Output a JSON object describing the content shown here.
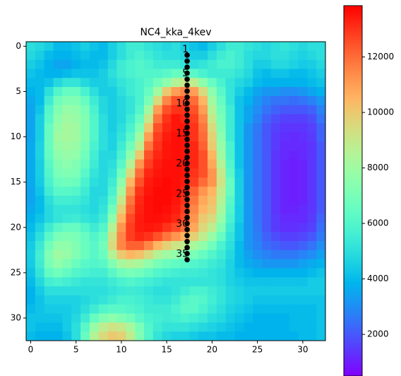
{
  "chart_data": {
    "type": "heatmap",
    "title": "NC4_kka_4kev",
    "colormap": "rainbow",
    "xlim": [
      -0.5,
      32.5
    ],
    "ylim": [
      32.5,
      -0.5
    ],
    "xticks": [
      0,
      5,
      10,
      15,
      20,
      25,
      30
    ],
    "yticks": [
      0,
      5,
      10,
      15,
      20,
      25,
      30
    ],
    "clim": [
      500,
      13850
    ],
    "colorbar_ticks": [
      2000,
      4000,
      6000,
      8000,
      10000,
      12000
    ],
    "z": [
      [
        5000,
        4800,
        4500,
        4000,
        4000,
        4200,
        4500,
        4200,
        4000,
        4500,
        5000,
        5500,
        5500,
        5200,
        5000,
        4800,
        5000,
        4500,
        4200,
        4000,
        4500,
        5000,
        5500,
        5500,
        5200,
        5000,
        4800,
        5000,
        5200,
        5000,
        4800,
        5000,
        5000
      ],
      [
        4800,
        4500,
        4000,
        3800,
        3800,
        4000,
        4200,
        4000,
        4000,
        4500,
        5000,
        5500,
        5800,
        5500,
        5200,
        5000,
        5000,
        4800,
        4500,
        4500,
        5000,
        5500,
        5800,
        5500,
        5000,
        4800,
        4800,
        5000,
        5000,
        4800,
        4600,
        4800,
        5000
      ],
      [
        4500,
        4200,
        3800,
        3500,
        3500,
        3800,
        4000,
        4000,
        4200,
        4800,
        5500,
        5800,
        6000,
        5800,
        5500,
        5500,
        5500,
        5200,
        5000,
        5200,
        5500,
        5800,
        5800,
        5500,
        5000,
        4500,
        4500,
        4800,
        4800,
        4600,
        4400,
        4500,
        4800
      ],
      [
        4200,
        4000,
        3800,
        3800,
        4000,
        4200,
        4200,
        4200,
        4500,
        5000,
        5500,
        5800,
        6000,
        6000,
        6000,
        6200,
        6500,
        6500,
        6200,
        5800,
        5500,
        5500,
        5500,
        5200,
        4800,
        4200,
        4000,
        4200,
        4200,
        4000,
        4000,
        4200,
        4500
      ],
      [
        4000,
        4000,
        4200,
        4800,
        5200,
        5200,
        4800,
        4500,
        4500,
        4800,
        5200,
        5500,
        5800,
        6200,
        6800,
        7500,
        8500,
        9000,
        8800,
        7500,
        6500,
        5800,
        5200,
        4800,
        4500,
        4000,
        3800,
        3800,
        3800,
        3800,
        3800,
        4000,
        4200
      ],
      [
        3800,
        4000,
        5000,
        6000,
        6500,
        6500,
        5800,
        5000,
        4500,
        4500,
        5000,
        5500,
        5800,
        6500,
        8000,
        10000,
        11000,
        11500,
        11000,
        9500,
        7500,
        6200,
        5200,
        4500,
        4000,
        3500,
        3200,
        3200,
        3000,
        3000,
        3200,
        3500,
        3800
      ],
      [
        3600,
        4000,
        5500,
        6800,
        7200,
        7200,
        6500,
        5500,
        4800,
        4500,
        4800,
        5200,
        5800,
        7000,
        9500,
        11500,
        12500,
        12500,
        12000,
        10500,
        8000,
        6500,
        5200,
        4200,
        3800,
        3200,
        2800,
        2500,
        2500,
        2400,
        2500,
        2800,
        3200
      ],
      [
        3500,
        4200,
        6000,
        7200,
        7800,
        7600,
        7000,
        5800,
        4800,
        4500,
        4800,
        5200,
        6000,
        8000,
        11000,
        12500,
        13000,
        13000,
        12500,
        11000,
        8500,
        6800,
        5500,
        4200,
        3500,
        3000,
        2500,
        2200,
        2000,
        2000,
        2000,
        2200,
        2800
      ],
      [
        3500,
        4500,
        6200,
        7500,
        8000,
        7800,
        7200,
        6000,
        5000,
        4500,
        4800,
        5500,
        6500,
        9000,
        11800,
        13000,
        13500,
        13200,
        12800,
        11500,
        9000,
        7000,
        5500,
        4200,
        3500,
        2800,
        2200,
        1800,
        1600,
        1600,
        1600,
        1800,
        2500
      ],
      [
        3500,
        4500,
        6500,
        7800,
        8200,
        8000,
        7200,
        6000,
        5000,
        4500,
        5000,
        5800,
        7200,
        10000,
        12500,
        13200,
        13500,
        13500,
        13000,
        11800,
        9500,
        7200,
        5500,
        4200,
        3200,
        2600,
        2000,
        1600,
        1400,
        1400,
        1400,
        1600,
        2200
      ],
      [
        3500,
        4500,
        6500,
        8000,
        8200,
        8000,
        7200,
        6000,
        5000,
        4600,
        5200,
        6200,
        8000,
        11000,
        12800,
        13400,
        13600,
        13500,
        13000,
        12000,
        9800,
        7500,
        5500,
        4200,
        3200,
        2500,
        2000,
        1500,
        1300,
        1200,
        1300,
        1500,
        2200
      ],
      [
        3600,
        4600,
        6500,
        7800,
        8000,
        7800,
        7000,
        5800,
        5000,
        4600,
        5500,
        6800,
        8800,
        11800,
        13000,
        13500,
        13600,
        13500,
        13200,
        12200,
        10000,
        7800,
        5800,
        4200,
        3200,
        2500,
        2000,
        1500,
        1200,
        1200,
        1200,
        1400,
        2000
      ],
      [
        3600,
        4600,
        6400,
        7500,
        7800,
        7600,
        6800,
        5600,
        4800,
        4800,
        5800,
        7500,
        10000,
        12500,
        13200,
        13500,
        13600,
        13500,
        13200,
        12500,
        10500,
        8000,
        5800,
        4200,
        3200,
        2500,
        2000,
        1400,
        1200,
        1100,
        1200,
        1400,
        2000
      ],
      [
        3600,
        4500,
        6200,
        7200,
        7500,
        7200,
        6500,
        5500,
        4800,
        5000,
        6200,
        8500,
        11200,
        12800,
        13400,
        13600,
        13600,
        13500,
        13200,
        12500,
        10800,
        8500,
        6000,
        4200,
        3200,
        2500,
        2000,
        1400,
        1100,
        1000,
        1100,
        1400,
        2000
      ],
      [
        3600,
        4500,
        6000,
        7000,
        7200,
        7000,
        6200,
        5200,
        4800,
        5200,
        6800,
        9500,
        12000,
        13200,
        13500,
        13600,
        13600,
        13500,
        13000,
        12500,
        11200,
        9000,
        6200,
        4400,
        3200,
        2500,
        2000,
        1400,
        1100,
        1000,
        1100,
        1400,
        2000
      ],
      [
        3600,
        4400,
        5800,
        6600,
        6800,
        6600,
        5800,
        5000,
        4800,
        5500,
        7500,
        10500,
        12500,
        13400,
        13600,
        13700,
        13600,
        13400,
        12800,
        12000,
        11200,
        9200,
        6500,
        4500,
        3200,
        2500,
        2000,
        1400,
        1100,
        1000,
        1100,
        1400,
        2000
      ],
      [
        3500,
        4200,
        5500,
        6200,
        6200,
        6000,
        5500,
        4800,
        4800,
        5800,
        8200,
        11200,
        13000,
        13500,
        13700,
        13700,
        13600,
        13200,
        12200,
        11200,
        10500,
        8800,
        6500,
        4500,
        3200,
        2500,
        2000,
        1400,
        1100,
        1000,
        1100,
        1400,
        2000
      ],
      [
        3500,
        4000,
        5000,
        5600,
        5600,
        5500,
        5200,
        4800,
        5000,
        6200,
        9000,
        11800,
        13200,
        13600,
        13700,
        13700,
        13500,
        13000,
        11800,
        10800,
        10200,
        8500,
        6200,
        4500,
        3200,
        2500,
        2000,
        1400,
        1100,
        1000,
        1100,
        1400,
        2000
      ],
      [
        3600,
        4000,
        4800,
        5200,
        5200,
        5200,
        5000,
        4800,
        5200,
        6800,
        9800,
        12200,
        13300,
        13600,
        13700,
        13600,
        13400,
        12800,
        11500,
        10500,
        10000,
        8200,
        6000,
        4400,
        3200,
        2500,
        2000,
        1400,
        1100,
        1100,
        1200,
        1400,
        2000
      ],
      [
        3800,
        4200,
        4800,
        5200,
        5400,
        5500,
        5200,
        5000,
        5500,
        7500,
        10500,
        12600,
        13400,
        13600,
        13600,
        13500,
        13200,
        12600,
        11200,
        10000,
        9500,
        7800,
        5800,
        4400,
        3200,
        2500,
        2000,
        1500,
        1200,
        1200,
        1200,
        1500,
        2200
      ],
      [
        4000,
        4600,
        5500,
        6200,
        6500,
        6500,
        6000,
        5500,
        6000,
        8500,
        11200,
        12800,
        13400,
        13500,
        13400,
        13000,
        12600,
        12000,
        10800,
        9600,
        8800,
        7200,
        5500,
        4200,
        3200,
        2600,
        2000,
        1500,
        1300,
        1300,
        1400,
        1600,
        2400
      ],
      [
        4200,
        5000,
        6200,
        7000,
        7200,
        7000,
        6500,
        6000,
        6500,
        9200,
        11500,
        12800,
        13200,
        13000,
        12500,
        11800,
        11200,
        10600,
        9800,
        8800,
        7800,
        6500,
        5200,
        4200,
        3200,
        2700,
        2200,
        1800,
        1600,
        1600,
        1700,
        2000,
        2600
      ],
      [
        4400,
        5400,
        6800,
        7600,
        7600,
        7200,
        6600,
        6200,
        6800,
        9500,
        11500,
        12200,
        12200,
        11500,
        10500,
        9800,
        9200,
        8800,
        8200,
        7600,
        6800,
        5800,
        5000,
        4000,
        3200,
        2800,
        2400,
        2200,
        2000,
        2000,
        2200,
        2500,
        3000
      ],
      [
        4500,
        5600,
        7200,
        8000,
        7800,
        7200,
        6600,
        6200,
        6600,
        8500,
        10000,
        10500,
        10200,
        9500,
        8500,
        8000,
        7600,
        7200,
        7000,
        6500,
        6000,
        5500,
        4800,
        4000,
        3400,
        3000,
        2800,
        2600,
        2600,
        2600,
        2800,
        3000,
        3400
      ],
      [
        4400,
        5500,
        7000,
        7600,
        7200,
        6600,
        6200,
        6000,
        6200,
        7200,
        8200,
        8500,
        8200,
        7600,
        7000,
        6600,
        6400,
        6200,
        6000,
        5800,
        5500,
        5200,
        4600,
        4000,
        3600,
        3400,
        3200,
        3200,
        3200,
        3200,
        3400,
        3600,
        3800
      ],
      [
        4200,
        5200,
        6400,
        6800,
        6400,
        6000,
        5800,
        5600,
        5600,
        6200,
        6800,
        7000,
        6800,
        6400,
        6000,
        5800,
        5600,
        5500,
        5500,
        5400,
        5200,
        5000,
        4600,
        4200,
        4000,
        3800,
        3800,
        3800,
        3800,
        3800,
        3800,
        4000,
        4200
      ],
      [
        4000,
        4800,
        5600,
        5800,
        5600,
        5400,
        5200,
        5200,
        5200,
        5500,
        5800,
        6000,
        5800,
        5600,
        5400,
        5200,
        5200,
        5200,
        5200,
        5200,
        5200,
        5000,
        4600,
        4400,
        4200,
        4200,
        4200,
        4200,
        4200,
        4200,
        4200,
        4400,
        4400
      ],
      [
        3800,
        4400,
        5000,
        5000,
        5000,
        5000,
        5000,
        5000,
        5000,
        5200,
        5400,
        5500,
        5400,
        5200,
        5000,
        5000,
        5200,
        5500,
        5800,
        5800,
        5500,
        5200,
        4800,
        4600,
        4400,
        4400,
        4400,
        4400,
        4400,
        4400,
        4400,
        4400,
        4400
      ],
      [
        3800,
        4200,
        4600,
        4600,
        4600,
        4600,
        4800,
        5000,
        5200,
        5500,
        5800,
        5800,
        5600,
        5400,
        5200,
        5200,
        5500,
        6000,
        6200,
        6000,
        5600,
        5200,
        4800,
        4600,
        4400,
        4200,
        4200,
        4200,
        4200,
        4200,
        4200,
        4200,
        4200
      ],
      [
        4000,
        4200,
        4400,
        4400,
        4400,
        4600,
        5000,
        5500,
        6000,
        6200,
        6200,
        6000,
        5800,
        5500,
        5500,
        5500,
        5800,
        6200,
        6200,
        5800,
        5400,
        5000,
        4600,
        4400,
        4200,
        4000,
        4000,
        4000,
        4000,
        4000,
        4000,
        4000,
        4200
      ],
      [
        4200,
        4200,
        4200,
        4200,
        4400,
        4800,
        5500,
        6500,
        7200,
        7500,
        7200,
        6800,
        6200,
        5800,
        5600,
        5500,
        5600,
        5800,
        5600,
        5400,
        5000,
        4800,
        4400,
        4200,
        4000,
        3800,
        3800,
        3800,
        3800,
        4000,
        4000,
        4000,
        4200
      ],
      [
        4200,
        4000,
        4000,
        4000,
        4400,
        5000,
        6200,
        7800,
        8800,
        9200,
        9000,
        8200,
        7000,
        6000,
        5500,
        5200,
        5200,
        5200,
        5000,
        4800,
        4600,
        4400,
        4200,
        4000,
        3800,
        3800,
        3800,
        3800,
        3800,
        4000,
        4000,
        4000,
        4200
      ],
      [
        4000,
        3800,
        3800,
        3800,
        4200,
        5000,
        6500,
        8500,
        9500,
        10000,
        9800,
        8800,
        7200,
        6000,
        5200,
        4800,
        4600,
        4600,
        4400,
        4200,
        4200,
        4000,
        4000,
        3800,
        3800,
        3800,
        3800,
        3800,
        3800,
        3800,
        4000,
        4000,
        4200
      ]
    ],
    "points": {
      "color": "#000000",
      "x": [
        17.25,
        17.25,
        17.25,
        17.25,
        17.25,
        17.25,
        17.25,
        17.25,
        17.25,
        17.25,
        17.25,
        17.25,
        17.25,
        17.25,
        17.25,
        17.25,
        17.25,
        17.25,
        17.25,
        17.25,
        17.25,
        17.25,
        17.25,
        17.25,
        17.25,
        17.25,
        17.25,
        17.25,
        17.25,
        17.25,
        17.25,
        17.25,
        17.25,
        17.25,
        17.25
      ],
      "y": [
        0.98,
        1.64,
        2.31,
        2.97,
        3.64,
        4.3,
        4.96,
        5.63,
        6.29,
        6.96,
        7.62,
        8.28,
        8.95,
        9.61,
        10.28,
        10.94,
        11.6,
        12.27,
        12.93,
        13.6,
        14.26,
        14.92,
        15.59,
        16.25,
        16.92,
        17.58,
        18.24,
        18.91,
        19.57,
        20.24,
        20.9,
        21.56,
        22.23,
        22.89,
        23.56
      ],
      "labels": [
        "1",
        null,
        null,
        null,
        "5",
        null,
        null,
        null,
        null,
        "10",
        null,
        null,
        null,
        null,
        "15",
        null,
        null,
        null,
        null,
        "20",
        null,
        null,
        null,
        null,
        "25",
        null,
        null,
        null,
        null,
        "30",
        null,
        null,
        null,
        null,
        "35"
      ]
    }
  }
}
